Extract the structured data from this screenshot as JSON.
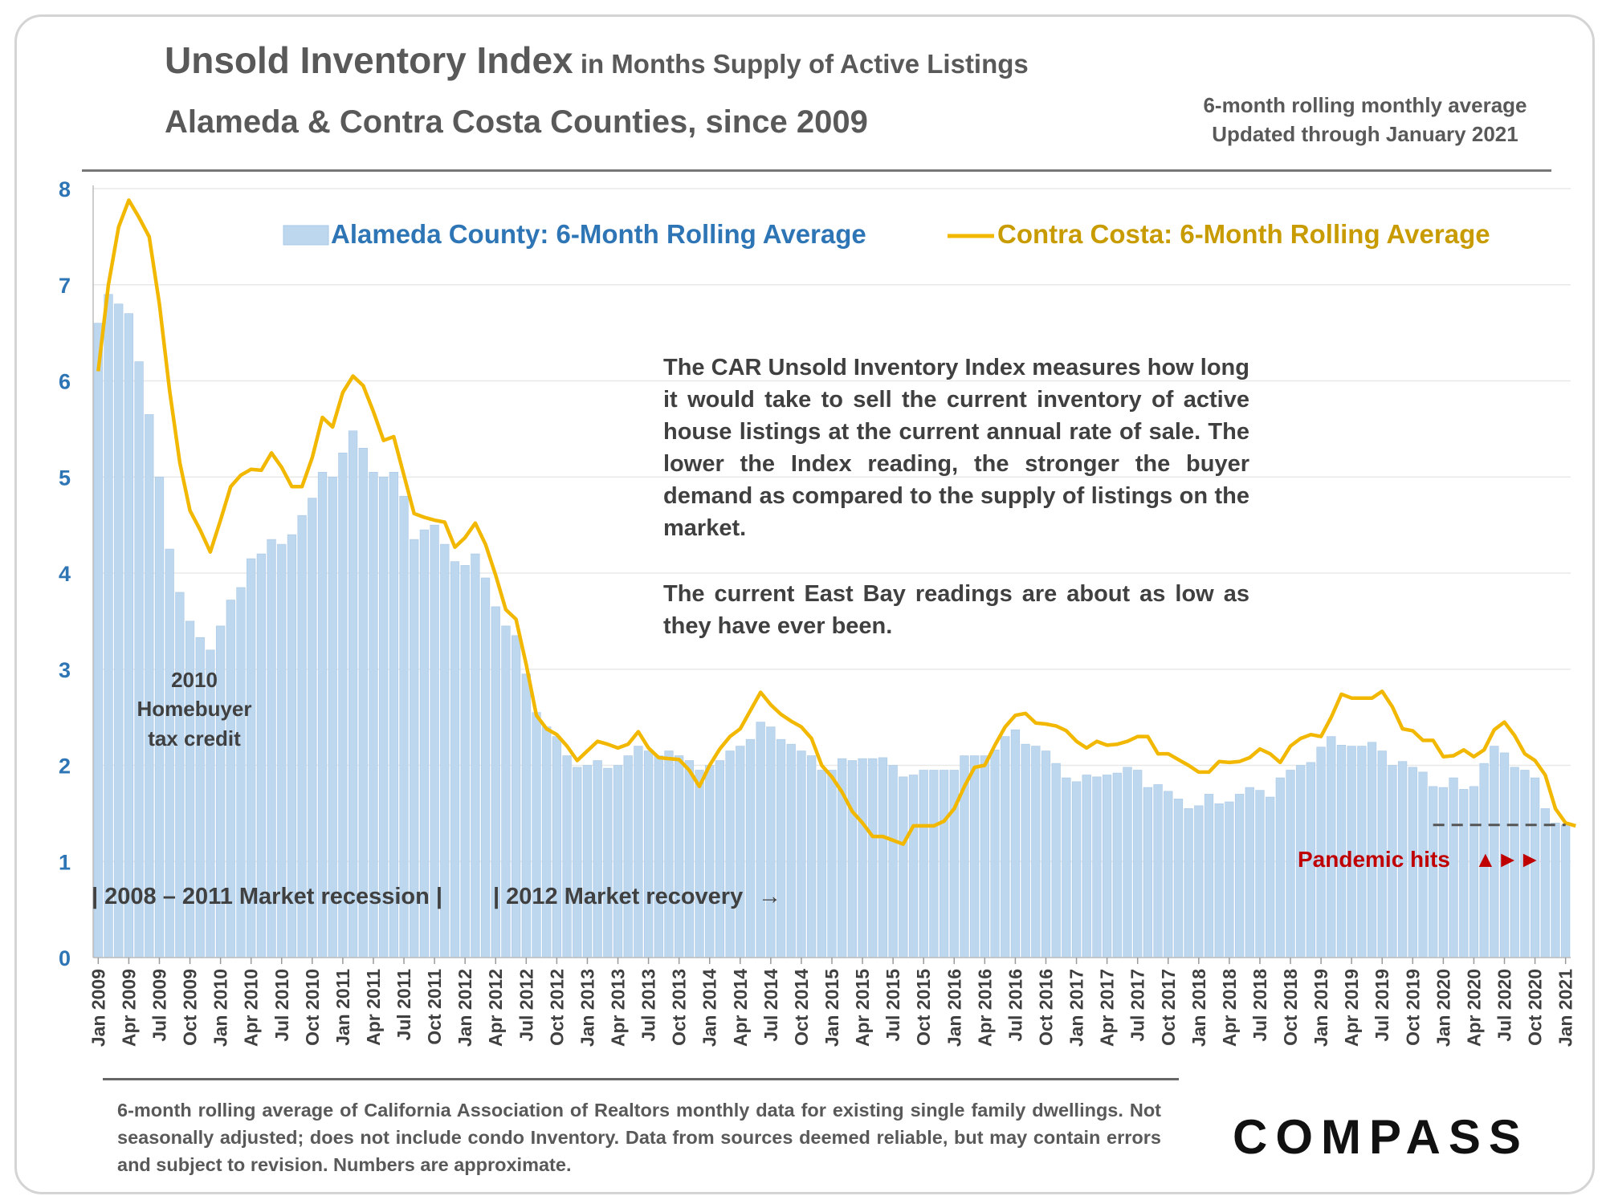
{
  "header": {
    "title": "Unsold Inventory Index",
    "title_suffix": "in Months Supply of Active Listings",
    "subtitle": "Alameda & Contra Costa Counties, since 2009",
    "note_line1": "6-month rolling monthly average",
    "note_line2": "Updated through January 2021"
  },
  "annotation": {
    "paragraph1": "The CAR Unsold Inventory Index measures how long it would take to sell the current inventory of active house listings at the current annual rate of sale. The lower the Index reading, the stronger the buyer demand as compared to the supply of listings on the market.",
    "paragraph2": "The current East Bay readings are about as low as they have ever been."
  },
  "chart_labels": {
    "tax_credit_line1": "2010",
    "tax_credit_line2": "Homebuyer",
    "tax_credit_line3": "tax credit",
    "recession": "| 2008 – 2011 Market recession |",
    "recovery": "| 2012 Market recovery",
    "recovery_arrow": "→",
    "pandemic": "Pandemic hits",
    "pandemic_arrows": "▲►►"
  },
  "footer": {
    "text": "6-month rolling average of California Association of Realtors monthly data for existing single family dwellings. Not seasonally adjusted; does not include condo Inventory. Data from sources deemed reliable, but may contain errors and subject to revision. Numbers are approximate."
  },
  "brand": {
    "logo": "COMPASS"
  },
  "colors": {
    "bar_fill": "#bdd7ee",
    "bar_stroke": "#a9c8e6",
    "line": "#f2b800",
    "legend_alameda_text": "#2e75b6",
    "legend_contra_text": "#c89b00",
    "axis_text": "#2e75b6",
    "pandemic_text": "#c00000",
    "grid": "#e8e8e8"
  },
  "chart_data": {
    "type": "bar",
    "ylim": [
      0,
      8
    ],
    "yticks": [
      0,
      1,
      2,
      3,
      4,
      5,
      6,
      7,
      8
    ],
    "grid": true,
    "legend_position": "top",
    "x_tick_labels": [
      "Jan 2009",
      "Apr 2009",
      "Jul 2009",
      "Oct 2009",
      "Jan 2010",
      "Apr 2010",
      "Jul 2010",
      "Oct 2010",
      "Jan 2011",
      "Apr 2011",
      "Jul 2011",
      "Oct 2011",
      "Jan 2012",
      "Apr 2012",
      "Jul 2012",
      "Oct 2012",
      "Jan 2013",
      "Apr 2013",
      "Jul 2013",
      "Oct 2013",
      "Jan 2014",
      "Apr 2014",
      "Jul 2014",
      "Oct 2014",
      "Jan 2015",
      "Apr 2015",
      "Jul 2015",
      "Oct 2015",
      "Jan 2016",
      "Apr 2016",
      "Jul 2016",
      "Oct 2016",
      "Jan 2017",
      "Apr 2017",
      "Jul 2017",
      "Oct 2017",
      "Jan 2018",
      "Apr 2018",
      "Jul 2018",
      "Oct 2018",
      "Jan 2019",
      "Apr 2019",
      "Jul 2019",
      "Oct 2019",
      "Jan 2020",
      "Apr 2020",
      "Jul 2020",
      "Oct 2020",
      "Jan 2021"
    ],
    "series": [
      {
        "name": "Alameda County: 6-Month Rolling Average",
        "type": "bar",
        "values": [
          6.6,
          6.9,
          6.8,
          6.7,
          6.2,
          5.65,
          5.0,
          4.25,
          3.8,
          3.5,
          3.33,
          3.2,
          3.45,
          3.72,
          3.85,
          4.15,
          4.2,
          4.35,
          4.3,
          4.4,
          4.6,
          4.78,
          5.05,
          5.0,
          5.25,
          5.48,
          5.3,
          5.05,
          5.0,
          5.05,
          4.8,
          4.35,
          4.45,
          4.5,
          4.3,
          4.12,
          4.08,
          4.2,
          3.95,
          3.65,
          3.45,
          3.35,
          2.95,
          2.55,
          2.4,
          2.3,
          2.1,
          1.98,
          2.0,
          2.05,
          1.97,
          2.0,
          2.1,
          2.2,
          2.15,
          2.1,
          2.15,
          2.1,
          2.05,
          1.95,
          2.0,
          2.05,
          2.15,
          2.2,
          2.27,
          2.45,
          2.4,
          2.27,
          2.22,
          2.15,
          2.1,
          1.95,
          1.95,
          2.07,
          2.05,
          2.07,
          2.07,
          2.08,
          2.0,
          1.88,
          1.9,
          1.95,
          1.95,
          1.95,
          1.95,
          2.1,
          2.1,
          2.1,
          2.16,
          2.3,
          2.37,
          2.22,
          2.2,
          2.15,
          2.02,
          1.87,
          1.83,
          1.9,
          1.88,
          1.9,
          1.92,
          1.98,
          1.95,
          1.77,
          1.8,
          1.73,
          1.65,
          1.55,
          1.58,
          1.7,
          1.6,
          1.62,
          1.7,
          1.77,
          1.74,
          1.67,
          1.87,
          1.95,
          2.0,
          2.03,
          2.19,
          2.3,
          2.21,
          2.2,
          2.2,
          2.24,
          2.15,
          2.0,
          2.04,
          1.98,
          1.93,
          1.78,
          1.77,
          1.87,
          1.75,
          1.78,
          2.02,
          2.2,
          2.13,
          1.98,
          1.95,
          1.87,
          1.55,
          1.4,
          1.38
        ],
        "x_range": [
          "Jan 2009",
          "Jan 2021"
        ]
      },
      {
        "name": "Contra Costa: 6-Month Rolling Average",
        "type": "line",
        "values": [
          6.1,
          7.0,
          7.6,
          7.88,
          7.7,
          7.5,
          6.8,
          5.9,
          5.15,
          4.65,
          4.45,
          4.22,
          4.55,
          4.9,
          5.02,
          5.08,
          5.07,
          5.25,
          5.1,
          4.9,
          4.9,
          5.2,
          5.62,
          5.52,
          5.88,
          6.05,
          5.95,
          5.68,
          5.38,
          5.42,
          5.02,
          4.62,
          4.58,
          4.55,
          4.53,
          4.27,
          4.37,
          4.52,
          4.3,
          3.98,
          3.62,
          3.52,
          3.05,
          2.52,
          2.38,
          2.32,
          2.2,
          2.05,
          2.15,
          2.25,
          2.22,
          2.18,
          2.22,
          2.35,
          2.18,
          2.08,
          2.07,
          2.06,
          1.95,
          1.78,
          2.0,
          2.17,
          2.3,
          2.38,
          2.57,
          2.76,
          2.63,
          2.53,
          2.46,
          2.4,
          2.28,
          2.0,
          1.88,
          1.72,
          1.52,
          1.4,
          1.26,
          1.26,
          1.22,
          1.18,
          1.37,
          1.37,
          1.37,
          1.42,
          1.55,
          1.78,
          1.98,
          2.0,
          2.21,
          2.4,
          2.52,
          2.54,
          2.44,
          2.43,
          2.41,
          2.36,
          2.25,
          2.18,
          2.25,
          2.21,
          2.22,
          2.25,
          2.3,
          2.3,
          2.12,
          2.12,
          2.06,
          2.0,
          1.93,
          1.93,
          2.04,
          2.03,
          2.04,
          2.08,
          2.17,
          2.12,
          2.03,
          2.2,
          2.28,
          2.32,
          2.3,
          2.5,
          2.74,
          2.7,
          2.7,
          2.7,
          2.77,
          2.61,
          2.38,
          2.36,
          2.26,
          2.26,
          2.09,
          2.1,
          2.16,
          2.09,
          2.16,
          2.37,
          2.45,
          2.31,
          2.12,
          2.05,
          1.9,
          1.55,
          1.4,
          1.37
        ]
      }
    ],
    "reference_line": {
      "value": 1.38,
      "from": "Dec 2019",
      "to": "Jan 2021",
      "style": "dashed"
    }
  }
}
